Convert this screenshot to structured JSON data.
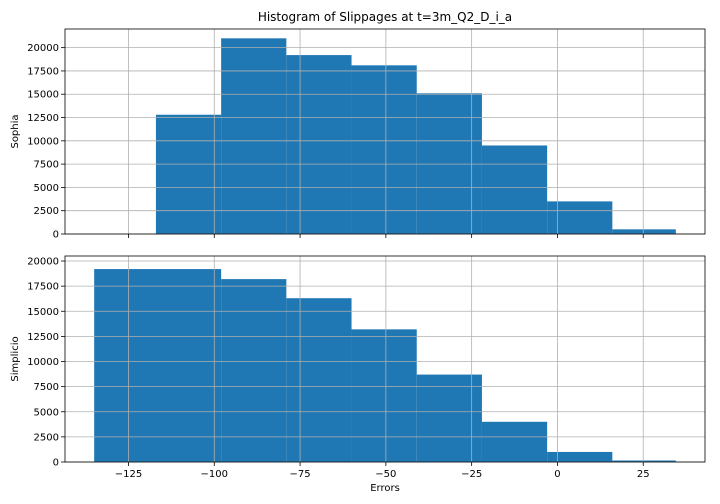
{
  "chart_data": {
    "type": "bar",
    "title": "Histogram of Slippages at t=3m_Q2_D_i_a",
    "xlabel": "Errors",
    "shared_x": true,
    "xlim": [
      -143.5,
      43
    ],
    "xticks": [
      -125,
      -100,
      -75,
      -50,
      -25,
      0,
      25
    ],
    "xtick_labels": [
      "−125",
      "−100",
      "−75",
      "−50",
      "−25",
      "0",
      "25"
    ],
    "grid": true,
    "bar_color": "#1f77b4",
    "panels": [
      {
        "ylabel": "Sophia",
        "ylim": [
          0,
          22000
        ],
        "yticks": [
          0,
          2500,
          5000,
          7500,
          10000,
          12500,
          15000,
          17500,
          20000
        ],
        "ytick_labels": [
          "0",
          "2500",
          "5000",
          "7500",
          "10000",
          "12500",
          "15000",
          "17500",
          "20000"
        ],
        "bins": [
          {
            "x0": -117,
            "x1": -98,
            "count": 12800
          },
          {
            "x0": -98,
            "x1": -79,
            "count": 21000
          },
          {
            "x0": -79,
            "x1": -60,
            "count": 19200
          },
          {
            "x0": -60,
            "x1": -41,
            "count": 18100
          },
          {
            "x0": -41,
            "x1": -22,
            "count": 15100
          },
          {
            "x0": -22,
            "x1": -3,
            "count": 9500
          },
          {
            "x0": -3,
            "x1": 16,
            "count": 3500
          },
          {
            "x0": 16,
            "x1": 34.5,
            "count": 500
          }
        ]
      },
      {
        "ylabel": "Simplicio",
        "ylim": [
          0,
          20500
        ],
        "yticks": [
          0,
          2500,
          5000,
          7500,
          10000,
          12500,
          15000,
          17500,
          20000
        ],
        "ytick_labels": [
          "0",
          "2500",
          "5000",
          "7500",
          "10000",
          "12500",
          "15000",
          "17500",
          "20000"
        ],
        "bins": [
          {
            "x0": -135,
            "x1": -98,
            "count": 19200
          },
          {
            "x0": -98,
            "x1": -79,
            "count": 18200
          },
          {
            "x0": -79,
            "x1": -60,
            "count": 16300
          },
          {
            "x0": -60,
            "x1": -41,
            "count": 13200
          },
          {
            "x0": -41,
            "x1": -22,
            "count": 8700
          },
          {
            "x0": -22,
            "x1": -3,
            "count": 4000
          },
          {
            "x0": -3,
            "x1": 16,
            "count": 1000
          },
          {
            "x0": 16,
            "x1": 34.5,
            "count": 150
          }
        ]
      }
    ]
  }
}
